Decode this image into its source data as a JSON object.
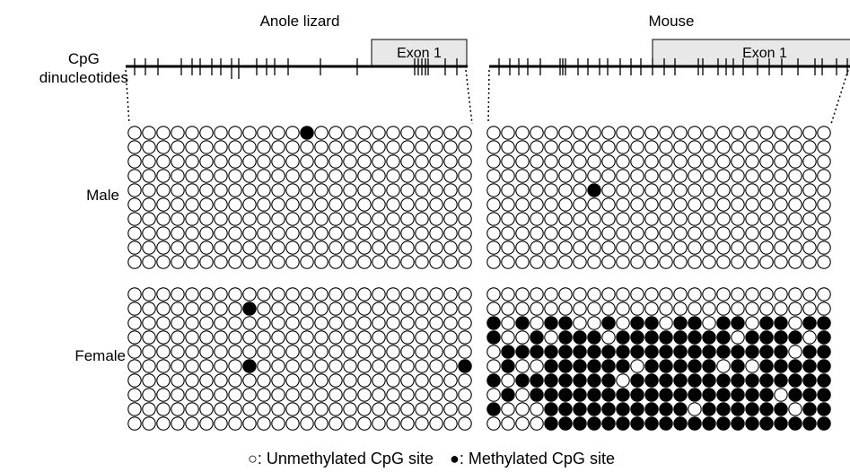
{
  "species": [
    {
      "name": "Anole lizard",
      "exon_label": "Exon 1",
      "male": {
        "label": "Male",
        "rows": [
          "000000000000100000000000",
          "000000000000000000000000",
          "000000000000000000000000",
          "000000000000000000000000",
          "000000000000000000000000",
          "000000000000000000000000",
          "000000000000000000000000",
          "000000000000000000000000",
          "000000000000000000000000",
          "000000000000000000000000"
        ]
      },
      "female": {
        "label": "Female",
        "rows": [
          "000000000000000000000000",
          "000000000000000000000000",
          "000000000000000000000000",
          "000000000000000000000000",
          "000000000000000000000000",
          "000000000000000000000000",
          "000000000000000000000000",
          "000000000000000000000000",
          "000000000000000000000000",
          "000000000000000000000000"
        ],
        "methylated_points": [
          [
            1,
            8
          ],
          [
            5,
            8
          ],
          [
            5,
            23
          ]
        ]
      }
    },
    {
      "name": "Mouse",
      "exon_label": "Exon 1",
      "male": {
        "label": "Male",
        "rows": [
          "000000000000000000000000",
          "000000000000000000000000",
          "000000000000000000000000",
          "000000000000000000000000",
          "000000000000000000000000",
          "000000000000000000000000",
          "000000000000000000000000",
          "000000000000000000000000",
          "000000000000000000000000",
          "000000000000000000000000"
        ],
        "methylated_points": [
          [
            4,
            7
          ]
        ]
      },
      "female": {
        "label": "Female",
        "rows": [
          "000000000000000000000000",
          "000000000000000000000000",
          "101011001011011011011011",
          "100101110111111110111101",
          "011111111111111111111011",
          "010011111101111101011111",
          "101111111011111111111111",
          "010111111111111111110111",
          "100011111111110111111011",
          "000011111111111111111111"
        ]
      }
    }
  ],
  "cpg_label": "CpG\ndinucleotides",
  "legend": {
    "unmethylated_symbol": "○",
    "unmethylated_text": ": Unmethylated CpG site",
    "methylated_symbol": "●",
    "methylated_text": ": Methylated CpG site"
  },
  "colors": {
    "methylated": "#000000",
    "unmethylated": "#ffffff",
    "exon_fill": "#e8e8e8",
    "line": "#000000"
  }
}
